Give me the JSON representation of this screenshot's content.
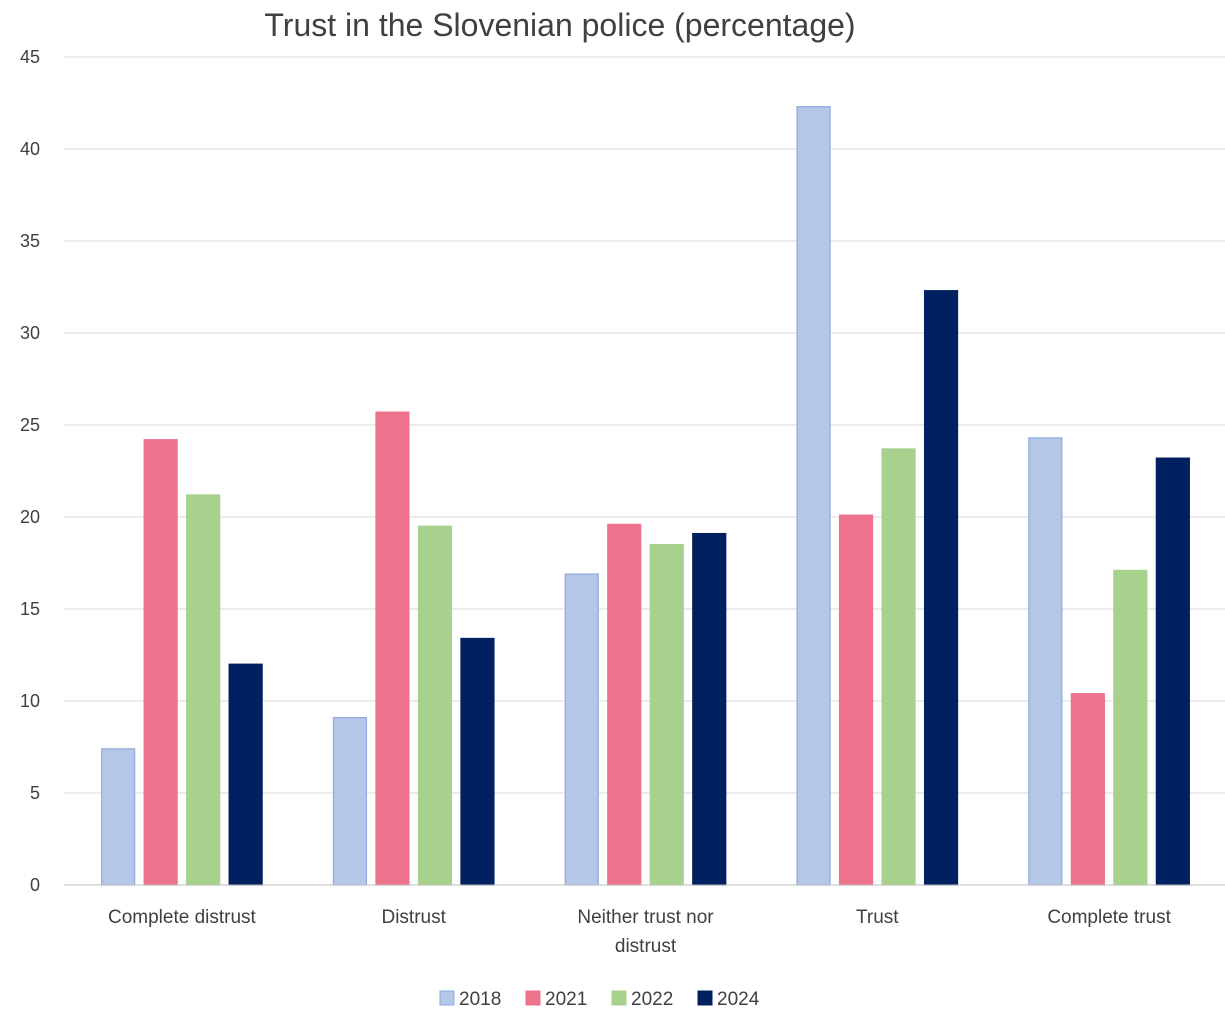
{
  "chart_data": {
    "type": "bar",
    "title": "Trust in the Slovenian police (percentage)",
    "xlabel": "",
    "ylabel": "",
    "ylim": [
      0,
      45
    ],
    "yticks": [
      0,
      5,
      10,
      15,
      20,
      25,
      30,
      35,
      40,
      45
    ],
    "grid": true,
    "legend_position": "bottom",
    "categories": [
      [
        "Complete distrust"
      ],
      [
        "Distrust"
      ],
      [
        "Neither trust nor",
        "distrust"
      ],
      [
        "Trust"
      ],
      [
        "Complete trust"
      ]
    ],
    "series": [
      {
        "name": "2018",
        "color": "#b4c7e7",
        "border": "#8faadc",
        "values": [
          7.4,
          9.1,
          16.9,
          42.3,
          24.3
        ]
      },
      {
        "name": "2021",
        "color": "#ed728c",
        "border": "#ed728c",
        "values": [
          24.2,
          25.7,
          19.6,
          20.1,
          10.4
        ]
      },
      {
        "name": "2022",
        "color": "#a9d18e",
        "border": "#a9d18e",
        "values": [
          21.2,
          19.5,
          18.5,
          23.7,
          17.1
        ]
      },
      {
        "name": "2024",
        "color": "#002060",
        "border": "#002060",
        "values": [
          12.0,
          13.4,
          19.1,
          32.3,
          23.2
        ]
      }
    ]
  }
}
